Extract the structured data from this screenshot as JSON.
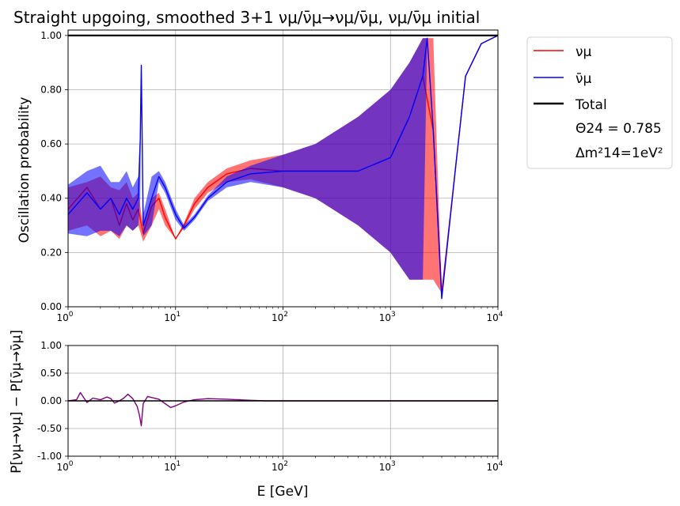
{
  "chart_data": [
    {
      "type": "line",
      "title": "Straight upgoing, smoothed 3+1 νμ/ν̄μ→νμ/ν̄μ, νμ/ν̄μ initial",
      "xlabel": "",
      "ylabel": "Oscillation probability",
      "xscale": "log",
      "xlim": [
        1,
        10000
      ],
      "ylim": [
        0,
        1.02
      ],
      "grid": true,
      "x_ticks": [
        {
          "base": "10",
          "exp": "0"
        },
        {
          "base": "10",
          "exp": "1"
        },
        {
          "base": "10",
          "exp": "2"
        },
        {
          "base": "10",
          "exp": "3"
        },
        {
          "base": "10",
          "exp": "4"
        }
      ],
      "y_ticks": [
        "0.00",
        "0.20",
        "0.40",
        "0.60",
        "0.80",
        "1.00"
      ],
      "legend": {
        "placement": "outside-right",
        "entries": [
          {
            "label": "νμ",
            "color": "#ff0000"
          },
          {
            "label": "ν̄μ",
            "color": "#0000ff"
          },
          {
            "label": "Total",
            "color": "#000000"
          }
        ],
        "annotation_1": "Θ24 = 0.785",
        "annotation_2": "Δm²14=1eV²"
      },
      "series": [
        {
          "name": "νμ",
          "color": "#ff0000",
          "x": [
            1,
            1.5,
            2,
            2.5,
            3,
            3.5,
            4,
            4.5,
            5,
            6,
            7,
            8,
            10,
            12,
            15,
            20,
            30,
            50,
            100,
            200,
            500,
            1000,
            1500,
            2000,
            2500,
            3000,
            4000,
            5000,
            7000,
            10000
          ],
          "y": [
            0.36,
            0.44,
            0.36,
            0.4,
            0.3,
            0.38,
            0.32,
            0.36,
            0.27,
            0.37,
            0.4,
            0.33,
            0.25,
            0.3,
            0.38,
            0.44,
            0.49,
            0.51,
            0.5,
            0.5,
            0.5,
            0.55,
            0.7,
            0.85,
            0.65,
            0.05,
            0.5,
            0.85,
            0.97,
            1.0
          ],
          "band_lo": [
            0.28,
            0.3,
            0.26,
            0.28,
            0.25,
            0.3,
            0.28,
            0.3,
            0.24,
            0.3,
            0.36,
            0.3,
            0.25,
            0.29,
            0.36,
            0.42,
            0.46,
            0.47,
            0.44,
            0.4,
            0.3,
            0.2,
            0.1,
            0.1,
            0.1,
            0.05,
            0.5,
            0.85,
            0.97,
            1.0
          ],
          "band_hi": [
            0.44,
            0.46,
            0.48,
            0.44,
            0.43,
            0.46,
            0.4,
            0.42,
            0.3,
            0.4,
            0.42,
            0.36,
            0.25,
            0.31,
            0.4,
            0.46,
            0.51,
            0.54,
            0.56,
            0.6,
            0.7,
            0.8,
            0.9,
            0.99,
            0.99,
            0.05,
            0.5,
            0.85,
            0.97,
            1.0
          ]
        },
        {
          "name": "ν̄μ",
          "color": "#0000ff",
          "x": [
            1,
            1.5,
            2,
            2.5,
            3,
            3.5,
            4,
            4.5,
            4.7,
            4.8,
            5,
            6,
            7,
            8,
            10,
            12,
            15,
            20,
            30,
            50,
            100,
            200,
            500,
            1000,
            1500,
            2000,
            2200,
            2500,
            3000,
            4000,
            5000,
            7000,
            10000
          ],
          "y": [
            0.34,
            0.42,
            0.36,
            0.4,
            0.34,
            0.4,
            0.36,
            0.4,
            0.62,
            0.89,
            0.3,
            0.4,
            0.48,
            0.44,
            0.34,
            0.29,
            0.33,
            0.4,
            0.46,
            0.49,
            0.5,
            0.5,
            0.5,
            0.55,
            0.7,
            0.85,
            0.99,
            0.65,
            0.03,
            0.5,
            0.85,
            0.97,
            1.0
          ],
          "band_lo": [
            0.27,
            0.26,
            0.28,
            0.28,
            0.26,
            0.3,
            0.28,
            0.3,
            0.4,
            0.89,
            0.26,
            0.3,
            0.46,
            0.42,
            0.32,
            0.28,
            0.32,
            0.39,
            0.44,
            0.46,
            0.44,
            0.4,
            0.3,
            0.2,
            0.1,
            0.1,
            0.99,
            0.65,
            0.03,
            0.5,
            0.85,
            0.97,
            1.0
          ],
          "band_hi": [
            0.45,
            0.5,
            0.52,
            0.46,
            0.46,
            0.5,
            0.44,
            0.48,
            0.66,
            0.89,
            0.34,
            0.48,
            0.5,
            0.46,
            0.36,
            0.3,
            0.34,
            0.41,
            0.48,
            0.52,
            0.56,
            0.6,
            0.7,
            0.8,
            0.9,
            0.99,
            0.99,
            0.65,
            0.03,
            0.5,
            0.85,
            0.97,
            1.0
          ]
        },
        {
          "name": "Total",
          "color": "#000000",
          "x": [
            1,
            10000
          ],
          "y": [
            1.0,
            1.0
          ]
        }
      ]
    },
    {
      "type": "line",
      "title": "",
      "xlabel": "E [GeV]",
      "ylabel": "P[νμ→νμ] − P[ν̄μ→ν̄μ]",
      "xscale": "log",
      "xlim": [
        1,
        10000
      ],
      "ylim": [
        -1.0,
        1.0
      ],
      "grid": true,
      "x_ticks": [
        {
          "base": "10",
          "exp": "0"
        },
        {
          "base": "10",
          "exp": "1"
        },
        {
          "base": "10",
          "exp": "2"
        },
        {
          "base": "10",
          "exp": "3"
        },
        {
          "base": "10",
          "exp": "4"
        }
      ],
      "y_ticks": [
        "-1.00",
        "-0.50",
        "0.00",
        "0.50",
        "1.00"
      ],
      "series": [
        {
          "name": "",
          "color": "#800080",
          "x": [
            1,
            1.2,
            1.3,
            1.5,
            1.7,
            2,
            2.3,
            2.5,
            2.7,
            3,
            3.3,
            3.6,
            4,
            4.4,
            4.6,
            4.8,
            5,
            5.5,
            6,
            7,
            8,
            9,
            10,
            12,
            15,
            20,
            30,
            50,
            70,
            100,
            10000
          ],
          "y": [
            0.0,
            0.02,
            0.15,
            -0.03,
            0.05,
            0.02,
            0.07,
            0.04,
            -0.04,
            0.0,
            0.05,
            0.12,
            0.04,
            -0.1,
            -0.25,
            -0.45,
            -0.05,
            0.08,
            0.06,
            0.03,
            -0.05,
            -0.12,
            -0.09,
            -0.02,
            0.02,
            0.04,
            0.03,
            0.01,
            0.0,
            0.0,
            0.0
          ]
        },
        {
          "name": "",
          "color": "#000000",
          "x": [
            1,
            10000
          ],
          "y": [
            0.0,
            0.0
          ]
        }
      ]
    }
  ]
}
